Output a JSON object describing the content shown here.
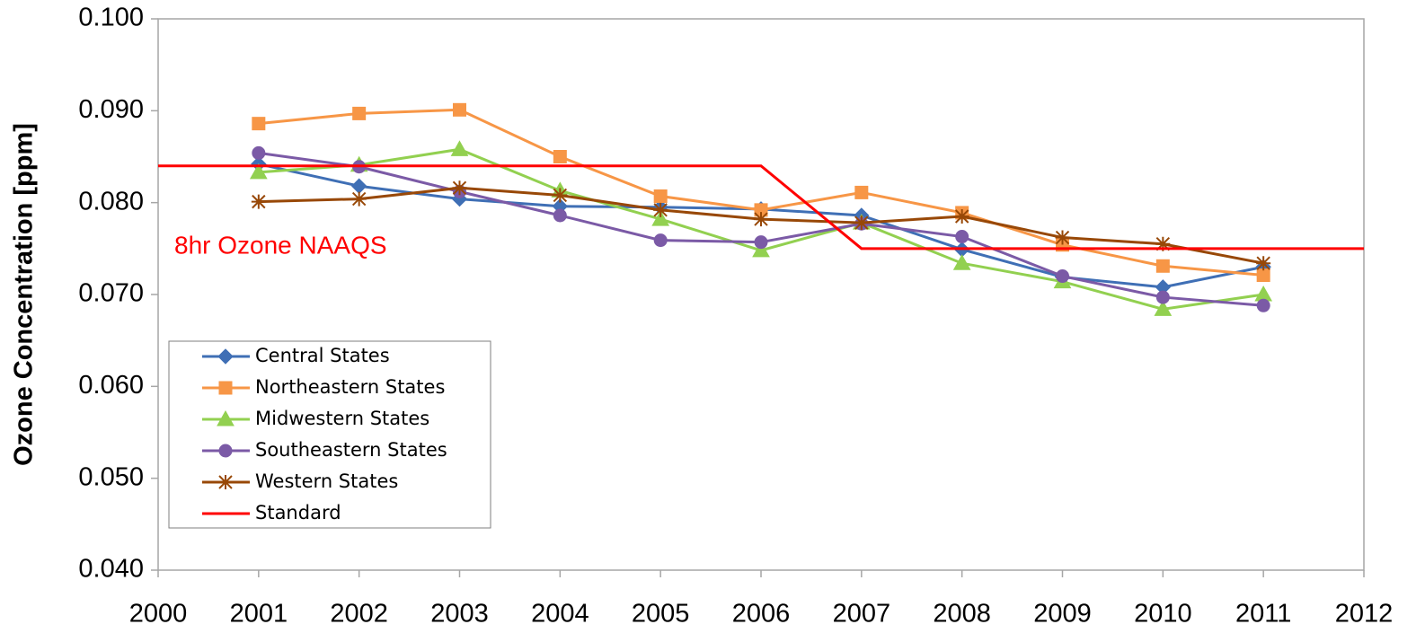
{
  "chart_data": {
    "type": "line",
    "y_label": "Ozone Concentration [ppm]",
    "annotation": "8hr Ozone NAAQS",
    "xlim": [
      2000,
      2012
    ],
    "xticks": [
      2000,
      2001,
      2002,
      2003,
      2004,
      2005,
      2006,
      2007,
      2008,
      2009,
      2010,
      2011,
      2012
    ],
    "ylim": [
      0.04,
      0.1
    ],
    "yticks": [
      {
        "value": 0.04,
        "label": "0.040"
      },
      {
        "value": 0.05,
        "label": "0.050"
      },
      {
        "value": 0.06,
        "label": "0.060"
      },
      {
        "value": 0.07,
        "label": "0.070"
      },
      {
        "value": 0.08,
        "label": "0.080"
      },
      {
        "value": 0.09,
        "label": "0.090"
      },
      {
        "value": 0.1,
        "label": "0.100"
      }
    ],
    "grid": false,
    "legend": "lower-left",
    "series": [
      {
        "name": "Central States",
        "color": "#3f6fb5",
        "marker": "diamond",
        "x": [
          2001,
          2002,
          2003,
          2004,
          2005,
          2006,
          2007,
          2008,
          2009,
          2010,
          2011
        ],
        "values": [
          0.0842,
          0.0818,
          0.0804,
          0.0796,
          0.0795,
          0.0793,
          0.0786,
          0.0749,
          0.0719,
          0.0708,
          0.073
        ]
      },
      {
        "name": "Northeastern States",
        "color": "#f79646",
        "marker": "square",
        "x": [
          2001,
          2002,
          2003,
          2004,
          2005,
          2006,
          2007,
          2008,
          2009,
          2010,
          2011
        ],
        "values": [
          0.0886,
          0.0897,
          0.0901,
          0.085,
          0.0807,
          0.0792,
          0.0811,
          0.0789,
          0.0754,
          0.0731,
          0.0721
        ]
      },
      {
        "name": "Midwestern States",
        "color": "#92d050",
        "marker": "triangle",
        "x": [
          2001,
          2002,
          2003,
          2004,
          2005,
          2006,
          2007,
          2008,
          2009,
          2010,
          2011
        ],
        "values": [
          0.0833,
          0.0841,
          0.0858,
          0.0813,
          0.0782,
          0.0748,
          0.0778,
          0.0734,
          0.0714,
          0.0684,
          0.07
        ]
      },
      {
        "name": "Southeastern States",
        "color": "#7b5aa6",
        "marker": "circle",
        "x": [
          2001,
          2002,
          2003,
          2004,
          2005,
          2006,
          2007,
          2008,
          2009,
          2010,
          2011
        ],
        "values": [
          0.0854,
          0.0839,
          0.0812,
          0.0786,
          0.0759,
          0.0757,
          0.0777,
          0.0763,
          0.072,
          0.0697,
          0.0688
        ]
      },
      {
        "name": "Western States",
        "color": "#984807",
        "marker": "star",
        "x": [
          2001,
          2002,
          2003,
          2004,
          2005,
          2006,
          2007,
          2008,
          2009,
          2010,
          2011
        ],
        "values": [
          0.0801,
          0.0804,
          0.0816,
          0.0808,
          0.0792,
          0.0782,
          0.0778,
          0.0785,
          0.0762,
          0.0755,
          0.0734
        ]
      },
      {
        "name": "Standard",
        "color": "#ff0000",
        "marker": "none",
        "x": [
          2000,
          2006,
          2007,
          2012
        ],
        "values": [
          0.084,
          0.084,
          0.075,
          0.075
        ]
      }
    ]
  }
}
